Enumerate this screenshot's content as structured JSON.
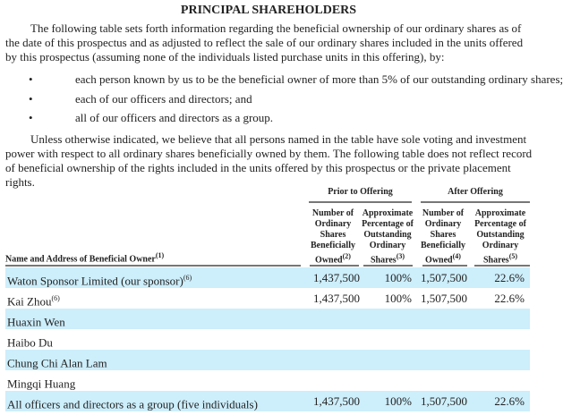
{
  "title": "PRINCIPAL SHAREHOLDERS",
  "intro": "The following table sets forth information regarding the beneficial ownership of our ordinary shares as of the date of this prospectus and as adjusted to reflect the sale of our ordinary shares included in the units offered by this prospectus (assuming none of the individuals listed purchase units in this offering), by:",
  "bullets": [
    "each person known by us to be the beneficial owner of more than 5% of our outstanding ordinary shares;",
    "each of our officers and directors; and",
    "all of our officers and directors as a group."
  ],
  "bullet_mark": "•",
  "outro": "Unless otherwise indicated, we believe that all persons named in the table have sole voting and investment power with respect to all ordinary shares beneficially owned by them. The following table does not reflect record of beneficial ownership of the rights included in the units offered by this prospectus or the private placement rights.",
  "table": {
    "groups": [
      "Prior to Offering",
      "After Offering"
    ],
    "headers": {
      "name": "Name and Address of Beneficial Owner",
      "name_note": "(1)",
      "c1": "Number of Ordinary Shares Beneficially Owned",
      "c1_note": "(2)",
      "c2": "Approximate Percentage of Outstanding Ordinary Shares",
      "c2_note": "(3)",
      "c3": "Number of Ordinary Shares Beneficially Owned",
      "c3_note": "(4)",
      "c4": "Approximate Percentage of Outstanding Ordinary Shares",
      "c4_note": "(5)"
    },
    "rows": [
      {
        "name": "Waton Sponsor Limited (our sponsor)",
        "note": "(6)",
        "prior_shares": "1,437,500",
        "prior_pct": "100%",
        "after_shares": "1,507,500",
        "after_pct": "22.6%"
      },
      {
        "name": "Kai Zhou",
        "note": "(6)",
        "prior_shares": "1,437,500",
        "prior_pct": "100%",
        "after_shares": "1,507,500",
        "after_pct": "22.6%"
      },
      {
        "name": "Huaxin Wen",
        "note": "",
        "prior_shares": "",
        "prior_pct": "",
        "after_shares": "",
        "after_pct": ""
      },
      {
        "name": "Haibo Du",
        "note": "",
        "prior_shares": "",
        "prior_pct": "",
        "after_shares": "",
        "after_pct": ""
      },
      {
        "name": "Chung Chi Alan Lam",
        "note": "",
        "prior_shares": "",
        "prior_pct": "",
        "after_shares": "",
        "after_pct": ""
      },
      {
        "name": "Mingqi Huang",
        "note": "",
        "prior_shares": "",
        "prior_pct": "",
        "after_shares": "",
        "after_pct": ""
      },
      {
        "name": "All officers and directors as a group (five individuals)",
        "note": "",
        "prior_shares": "1,437,500",
        "prior_pct": "100%",
        "after_shares": "1,507,500",
        "after_pct": "22.6%"
      }
    ]
  },
  "colors": {
    "row_shade": "#cdeefb",
    "rule": "#777777"
  }
}
